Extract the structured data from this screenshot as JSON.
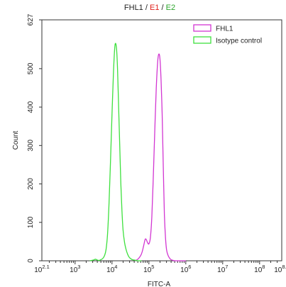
{
  "chart_data": {
    "type": "line",
    "title_parts": [
      {
        "text": "FHL1",
        "color": "#222222"
      },
      {
        "text": " / ",
        "color": "#222222"
      },
      {
        "text": "E1",
        "color": "#e0201b"
      },
      {
        "text": " / ",
        "color": "#222222"
      },
      {
        "text": "E2",
        "color": "#2aa52a"
      }
    ],
    "xlabel": "FITC-A",
    "ylabel": "Count",
    "x_scale": "log",
    "xlim": [
      2.1,
      8.6
    ],
    "ylim": [
      0,
      627
    ],
    "x_tick_labels": [
      {
        "pos": 2.1,
        "base": "10",
        "exp": "2.1"
      },
      {
        "pos": 3,
        "base": "10",
        "exp": "3"
      },
      {
        "pos": 4,
        "base": "10",
        "exp": "4"
      },
      {
        "pos": 5,
        "base": "10",
        "exp": "5"
      },
      {
        "pos": 6,
        "base": "10",
        "exp": "6"
      },
      {
        "pos": 7,
        "base": "10",
        "exp": "7"
      },
      {
        "pos": 8,
        "base": "10",
        "exp": "8"
      },
      {
        "pos": 8.6,
        "base": "10",
        "exp": "8.6"
      }
    ],
    "y_ticks": [
      0,
      100,
      200,
      300,
      400,
      500,
      627
    ],
    "legend_position": "top-right",
    "series": [
      {
        "name": "FHL1",
        "color": "#d236d2",
        "x_log10": [
          4.62,
          4.7,
          4.78,
          4.82,
          4.86,
          4.9,
          4.93,
          4.96,
          5.0,
          5.04,
          5.08,
          5.12,
          5.16,
          5.2,
          5.24,
          5.27,
          5.3,
          5.33,
          5.36,
          5.38,
          5.4,
          5.42,
          5.45,
          5.48,
          5.52,
          5.56,
          5.6,
          5.66,
          5.72,
          5.8,
          5.9,
          6.0
        ],
        "counts": [
          0,
          4,
          14,
          24,
          40,
          56,
          55,
          48,
          44,
          60,
          115,
          220,
          340,
          450,
          520,
          538,
          525,
          470,
          380,
          290,
          200,
          120,
          60,
          28,
          14,
          7,
          3,
          1,
          0,
          0,
          0,
          0
        ]
      },
      {
        "name": "Isotype control",
        "color": "#3ee03e",
        "x_log10": [
          3.4,
          3.5,
          3.55,
          3.6,
          3.65,
          3.7,
          3.75,
          3.8,
          3.84,
          3.88,
          3.92,
          3.96,
          4.0,
          4.04,
          4.08,
          4.12,
          4.15,
          4.18,
          4.21,
          4.24,
          4.27,
          4.3,
          4.34,
          4.38,
          4.42,
          4.46,
          4.5,
          4.55,
          4.6,
          4.65,
          4.7,
          4.8
        ],
        "counts": [
          0,
          2,
          4,
          2,
          1,
          3,
          6,
          14,
          30,
          70,
          150,
          260,
          380,
          490,
          560,
          555,
          500,
          400,
          300,
          200,
          130,
          80,
          48,
          30,
          18,
          10,
          6,
          3,
          2,
          1,
          0,
          0
        ]
      }
    ]
  }
}
